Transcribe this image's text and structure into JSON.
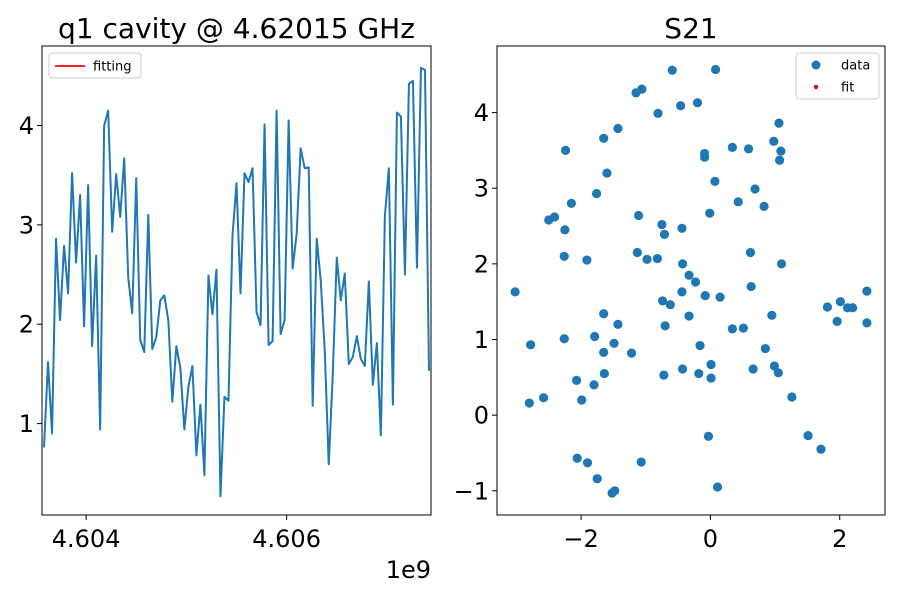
{
  "chart_data": [
    {
      "type": "line",
      "title": "q1 cavity @ 4.62015 GHz",
      "xlabel": "",
      "ylabel": "",
      "offset_label": "1e9",
      "xlim": [
        4.60356,
        4.60744
      ],
      "ylim": [
        0.08,
        4.8
      ],
      "x_ticks": [
        4.604,
        4.606
      ],
      "x_tick_labels": [
        "4.604",
        "4.606"
      ],
      "y_ticks": [
        1,
        2,
        3,
        4
      ],
      "y_tick_labels": [
        "1",
        "2",
        "3",
        "4"
      ],
      "x_range": [
        4.60358,
        4.60742
      ],
      "series": [
        {
          "name": "",
          "color": "#1f77b4",
          "values": [
            0.76,
            1.62,
            0.9,
            2.86,
            2.04,
            2.79,
            2.31,
            3.52,
            2.62,
            3.3,
            1.98,
            3.4,
            1.78,
            2.69,
            0.94,
            4.0,
            4.15,
            2.93,
            3.51,
            3.08,
            3.67,
            2.47,
            2.11,
            3.47,
            1.84,
            1.72,
            3.1,
            1.75,
            1.87,
            2.24,
            2.29,
            2.04,
            1.22,
            1.78,
            1.56,
            0.94,
            1.37,
            1.58,
            0.68,
            1.19,
            0.48,
            2.49,
            2.1,
            2.55,
            0.27,
            1.27,
            1.23,
            2.89,
            3.42,
            2.31,
            3.52,
            3.43,
            3.57,
            2.12,
            1.99,
            4.01,
            1.79,
            1.83,
            4.15,
            1.9,
            2.04,
            4.05,
            2.56,
            2.91,
            3.77,
            3.57,
            3.58,
            1.18,
            2.86,
            2.44,
            1.74,
            0.59,
            1.49,
            2.67,
            2.24,
            2.51,
            1.6,
            1.67,
            1.88,
            1.65,
            1.58,
            2.43,
            1.39,
            1.81,
            0.88,
            3.09,
            3.57,
            1.19,
            4.13,
            4.09,
            2.5,
            4.42,
            4.45,
            2.57,
            4.58,
            4.56,
            1.53
          ]
        },
        {
          "name": "fitting",
          "color": "#ff0000",
          "values": []
        }
      ],
      "legend": {
        "position": "top-left",
        "entries": [
          {
            "label": "fitting",
            "color": "#ff0000",
            "marker": "line"
          }
        ]
      },
      "grid": false
    },
    {
      "type": "scatter",
      "title": "S21",
      "xlabel": "",
      "ylabel": "",
      "xlim": [
        -3.3,
        2.7
      ],
      "ylim": [
        -1.32,
        4.88
      ],
      "x_ticks": [
        -2,
        0,
        2
      ],
      "x_tick_labels": [
        "−2",
        "0",
        "2"
      ],
      "y_ticks": [
        -1,
        0,
        1,
        2,
        3,
        4
      ],
      "y_tick_labels": [
        "−1",
        "0",
        "1",
        "2",
        "3",
        "4"
      ],
      "series": [
        {
          "name": "data",
          "color": "#1f77b4",
          "points": [
            [
              -3.02,
              1.63
            ],
            [
              -2.78,
              0.93
            ],
            [
              -2.8,
              0.16
            ],
            [
              -2.58,
              0.23
            ],
            [
              -2.5,
              2.58
            ],
            [
              -2.41,
              2.62
            ],
            [
              -2.25,
              2.45
            ],
            [
              -2.26,
              2.1
            ],
            [
              -2.26,
              1.01
            ],
            [
              -2.24,
              3.5
            ],
            [
              -2.15,
              2.8
            ],
            [
              -2.07,
              0.46
            ],
            [
              -2.06,
              -0.57
            ],
            [
              -1.99,
              0.2
            ],
            [
              -1.91,
              2.05
            ],
            [
              -1.9,
              -0.63
            ],
            [
              -1.79,
              1.04
            ],
            [
              -1.8,
              0.4
            ],
            [
              -1.76,
              2.93
            ],
            [
              -1.75,
              -0.84
            ],
            [
              -1.65,
              3.66
            ],
            [
              -1.65,
              1.34
            ],
            [
              -1.65,
              0.83
            ],
            [
              -1.64,
              0.55
            ],
            [
              -1.6,
              3.2
            ],
            [
              -1.52,
              -1.03
            ],
            [
              -1.48,
              -1.0
            ],
            [
              -1.49,
              0.95
            ],
            [
              -1.43,
              3.79
            ],
            [
              -1.43,
              1.2
            ],
            [
              -1.22,
              0.82
            ],
            [
              -1.15,
              4.26
            ],
            [
              -1.13,
              2.15
            ],
            [
              -1.11,
              2.64
            ],
            [
              -1.07,
              -0.62
            ],
            [
              -1.06,
              4.31
            ],
            [
              -0.98,
              2.06
            ],
            [
              -0.82,
              2.07
            ],
            [
              -0.81,
              3.99
            ],
            [
              -0.75,
              2.52
            ],
            [
              -0.74,
              1.51
            ],
            [
              -0.72,
              0.53
            ],
            [
              -0.71,
              2.39
            ],
            [
              -0.7,
              1.18
            ],
            [
              -0.62,
              1.46
            ],
            [
              -0.59,
              4.56
            ],
            [
              -0.46,
              4.09
            ],
            [
              -0.44,
              2.47
            ],
            [
              -0.43,
              2.0
            ],
            [
              -0.44,
              1.63
            ],
            [
              -0.43,
              0.61
            ],
            [
              -0.33,
              1.85
            ],
            [
              -0.33,
              1.31
            ],
            [
              -0.23,
              1.76
            ],
            [
              -0.2,
              4.13
            ],
            [
              -0.18,
              0.55
            ],
            [
              -0.16,
              0.92
            ],
            [
              -0.09,
              3.46
            ],
            [
              -0.09,
              3.41
            ],
            [
              -0.08,
              1.58
            ],
            [
              -0.03,
              -0.28
            ],
            [
              -0.01,
              2.67
            ],
            [
              0.01,
              0.49
            ],
            [
              0.01,
              0.67
            ],
            [
              0.07,
              3.09
            ],
            [
              0.08,
              4.57
            ],
            [
              0.11,
              -0.95
            ],
            [
              0.15,
              1.56
            ],
            [
              0.34,
              3.54
            ],
            [
              0.34,
              1.14
            ],
            [
              0.43,
              2.82
            ],
            [
              0.51,
              1.15
            ],
            [
              0.59,
              3.52
            ],
            [
              0.62,
              2.15
            ],
            [
              0.63,
              1.7
            ],
            [
              0.66,
              0.61
            ],
            [
              0.69,
              2.99
            ],
            [
              0.83,
              2.76
            ],
            [
              0.85,
              0.88
            ],
            [
              0.95,
              1.32
            ],
            [
              0.98,
              3.62
            ],
            [
              0.99,
              0.65
            ],
            [
              1.05,
              0.56
            ],
            [
              1.06,
              3.86
            ],
            [
              1.07,
              3.37
            ],
            [
              1.09,
              3.49
            ],
            [
              1.1,
              2.0
            ],
            [
              1.26,
              0.24
            ],
            [
              1.51,
              -0.27
            ],
            [
              1.71,
              -0.45
            ],
            [
              1.81,
              1.43
            ],
            [
              1.96,
              1.24
            ],
            [
              2.01,
              1.5
            ],
            [
              2.12,
              1.42
            ],
            [
              2.2,
              1.42
            ],
            [
              2.42,
              1.64
            ],
            [
              2.42,
              1.22
            ]
          ]
        },
        {
          "name": "fit",
          "color": "#ff0000",
          "points": []
        }
      ],
      "legend": {
        "position": "top-right",
        "entries": [
          {
            "label": "data",
            "color": "#1f77b4",
            "marker": "dot"
          },
          {
            "label": "fit",
            "color": "#ff0000",
            "marker": "small-dot"
          }
        ]
      },
      "grid": false
    }
  ]
}
